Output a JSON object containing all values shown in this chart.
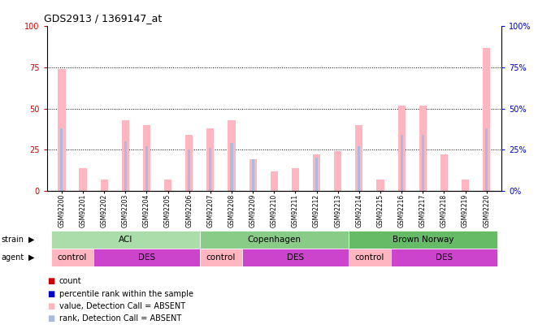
{
  "title": "GDS2913 / 1369147_at",
  "samples": [
    "GSM92200",
    "GSM92201",
    "GSM92202",
    "GSM92203",
    "GSM92204",
    "GSM92205",
    "GSM92206",
    "GSM92207",
    "GSM92208",
    "GSM92209",
    "GSM92210",
    "GSM92211",
    "GSM92212",
    "GSM92213",
    "GSM92214",
    "GSM92215",
    "GSM92216",
    "GSM92217",
    "GSM92218",
    "GSM92219",
    "GSM92220"
  ],
  "value_absent": [
    74,
    14,
    7,
    43,
    40,
    7,
    34,
    38,
    43,
    19,
    12,
    14,
    22,
    24,
    40,
    7,
    52,
    52,
    22,
    7,
    87
  ],
  "rank_absent": [
    38,
    0,
    0,
    30,
    27,
    0,
    25,
    26,
    29,
    19,
    0,
    0,
    20,
    0,
    27,
    0,
    34,
    34,
    0,
    0,
    38
  ],
  "ylim": [
    0,
    100
  ],
  "yticks": [
    0,
    25,
    50,
    75,
    100
  ],
  "strain_groups": [
    {
      "label": "ACI",
      "start": 0,
      "end": 6
    },
    {
      "label": "Copenhagen",
      "start": 7,
      "end": 13
    },
    {
      "label": "Brown Norway",
      "start": 14,
      "end": 20
    }
  ],
  "strain_colors": [
    "#AADDAA",
    "#88CC88",
    "#66BB66"
  ],
  "agent_groups": [
    {
      "label": "control",
      "start": 0,
      "end": 1
    },
    {
      "label": "DES",
      "start": 2,
      "end": 6
    },
    {
      "label": "control",
      "start": 7,
      "end": 8
    },
    {
      "label": "DES",
      "start": 9,
      "end": 13
    },
    {
      "label": "control",
      "start": 14,
      "end": 15
    },
    {
      "label": "DES",
      "start": 16,
      "end": 20
    }
  ],
  "agent_colors": {
    "control": "#FFB6C1",
    "DES": "#CC44CC"
  },
  "color_value_absent": "#FFB6C1",
  "color_rank_absent": "#AABBDD",
  "color_count": "#CC0000",
  "color_rank_present": "#0000CC",
  "left_axis_color": "#CC0000",
  "right_axis_color": "#0000CC",
  "legend_items": [
    {
      "color": "#CC0000",
      "label": "count"
    },
    {
      "color": "#0000CC",
      "label": "percentile rank within the sample"
    },
    {
      "color": "#FFB6C1",
      "label": "value, Detection Call = ABSENT"
    },
    {
      "color": "#AABBDD",
      "label": "rank, Detection Call = ABSENT"
    }
  ]
}
